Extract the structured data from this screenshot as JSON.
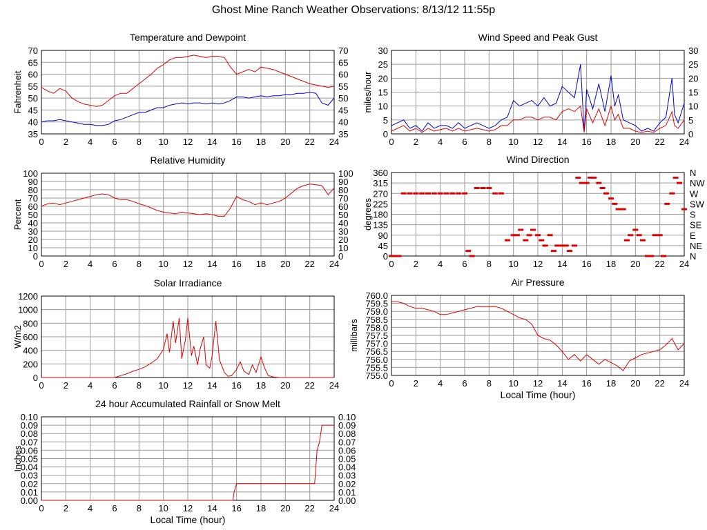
{
  "page": {
    "title": "Ghost Mine Ranch Weather Observations: 8/13/12 11:55p"
  },
  "chart_data": [
    {
      "id": "temp",
      "type": "line",
      "title": "Temperature and Dewpoint",
      "ylabel": "Fahrenheit",
      "xlabel": "",
      "xlim": [
        0,
        24
      ],
      "ylim": [
        35,
        70
      ],
      "xticks": [
        "0",
        "2",
        "4",
        "6",
        "8",
        "10",
        "12",
        "14",
        "16",
        "18",
        "20",
        "22",
        "24"
      ],
      "yticks": [
        "35",
        "40",
        "45",
        "50",
        "55",
        "60",
        "65",
        "70"
      ],
      "right_axis": true,
      "grid": true,
      "series": [
        {
          "color": "#dd0000",
          "x": [
            0,
            0.5,
            1,
            1.5,
            2,
            2.5,
            3,
            3.5,
            4,
            4.5,
            5,
            5.5,
            6,
            6.5,
            7,
            7.5,
            8,
            8.5,
            9,
            9.5,
            10,
            10.5,
            11,
            11.5,
            12,
            12.5,
            13,
            13.5,
            14,
            14.5,
            15,
            15.5,
            16,
            16.5,
            17,
            17.5,
            18,
            18.5,
            19,
            19.5,
            20,
            20.5,
            21,
            21.5,
            22,
            22.5,
            23,
            23.5,
            24
          ],
          "y": [
            54.5,
            53,
            52,
            54,
            53,
            50,
            48.5,
            47.5,
            47,
            46.5,
            47,
            49,
            51,
            52,
            52,
            54,
            56,
            58,
            60,
            62.5,
            64,
            66,
            67,
            67,
            67.5,
            68,
            67.5,
            67,
            67.5,
            67.5,
            67,
            63,
            60,
            61,
            62,
            61,
            63,
            62.5,
            62,
            61,
            60,
            59,
            58,
            57,
            56,
            55.5,
            55,
            54.5,
            55
          ]
        },
        {
          "color": "#0000cc",
          "x": [
            0,
            0.5,
            1,
            1.5,
            2,
            2.5,
            3,
            3.5,
            4,
            4.5,
            5,
            5.5,
            6,
            6.5,
            7,
            7.5,
            8,
            8.5,
            9,
            9.5,
            10,
            10.5,
            11,
            11.5,
            12,
            12.5,
            13,
            13.5,
            14,
            14.5,
            15,
            15.5,
            16,
            16.5,
            17,
            17.5,
            18,
            18.5,
            19,
            19.5,
            20,
            20.5,
            21,
            21.5,
            22,
            22.5,
            23,
            23.5,
            24
          ],
          "y": [
            40,
            40.5,
            40.5,
            41,
            40.5,
            40,
            39.5,
            39,
            39,
            38.5,
            38.5,
            39,
            40.5,
            41,
            42,
            43,
            44,
            44,
            45,
            46,
            46,
            47,
            47.5,
            48,
            47.5,
            48,
            48,
            47.5,
            48,
            47.5,
            48,
            49,
            50.5,
            50.5,
            50,
            50.5,
            51,
            50.5,
            51,
            51,
            51.5,
            51.5,
            52,
            52,
            52.5,
            52,
            48,
            47,
            50
          ]
        }
      ]
    },
    {
      "id": "wind",
      "type": "line",
      "title": "Wind Speed and Peak Gust",
      "ylabel": "miles/hour",
      "xlabel": "",
      "xlim": [
        0,
        24
      ],
      "ylim": [
        0,
        30
      ],
      "xticks": [
        "0",
        "2",
        "4",
        "6",
        "8",
        "10",
        "12",
        "14",
        "16",
        "18",
        "20",
        "22",
        "24"
      ],
      "yticks": [
        "0",
        "5",
        "10",
        "15",
        "20",
        "25",
        "30"
      ],
      "right_axis": true,
      "grid": true,
      "series": [
        {
          "color": "#0000cc",
          "x": [
            0,
            0.5,
            1,
            1.5,
            2,
            2.5,
            3,
            3.5,
            4,
            4.5,
            5,
            5.5,
            6,
            6.5,
            7,
            7.5,
            8,
            8.5,
            9,
            9.5,
            10,
            10.5,
            11,
            11.5,
            12,
            12.5,
            13,
            13.5,
            14,
            14.5,
            15,
            15.5,
            15.8,
            16,
            16.5,
            17,
            17.5,
            18,
            18.3,
            18.6,
            19,
            19.5,
            20,
            20.5,
            21,
            21.5,
            22,
            22.5,
            23,
            23.2,
            23.5,
            24
          ],
          "y": [
            3,
            4,
            5,
            2,
            3,
            1,
            4,
            2,
            3,
            3,
            2,
            4,
            2,
            3,
            4,
            3,
            2,
            3,
            5,
            6,
            12,
            10,
            11,
            12,
            10,
            13,
            10,
            11,
            17,
            15,
            13,
            25,
            1,
            16,
            9,
            18,
            8,
            21,
            10,
            14,
            5,
            4,
            3,
            1,
            2,
            1,
            4,
            6,
            20,
            7,
            4,
            11
          ]
        },
        {
          "color": "#dd0000",
          "x": [
            0,
            0.5,
            1,
            1.5,
            2,
            2.5,
            3,
            3.5,
            4,
            4.5,
            5,
            5.5,
            6,
            6.5,
            7,
            7.5,
            8,
            8.5,
            9,
            9.5,
            10,
            10.5,
            11,
            11.5,
            12,
            12.5,
            13,
            13.5,
            14,
            14.5,
            15,
            15.5,
            15.8,
            16,
            16.5,
            17,
            17.5,
            18,
            18.3,
            18.6,
            19,
            19.5,
            20,
            20.5,
            21,
            21.5,
            22,
            22.5,
            23,
            23.2,
            23.5,
            24
          ],
          "y": [
            1,
            2,
            3,
            1,
            2,
            0.5,
            2,
            1,
            1.5,
            2,
            1,
            2,
            1,
            1.5,
            2,
            1.5,
            1,
            1.5,
            3,
            3,
            5,
            5,
            6,
            6,
            5,
            6,
            6,
            5,
            8,
            9,
            8,
            10,
            0.5,
            9,
            4,
            9,
            3,
            10,
            5,
            7,
            2,
            2,
            1,
            0.5,
            1,
            0.5,
            2,
            3,
            8,
            3,
            2,
            5
          ]
        }
      ]
    },
    {
      "id": "humidity",
      "type": "line",
      "title": "Relative Humidity",
      "ylabel": "Percent",
      "xlabel": "",
      "xlim": [
        0,
        24
      ],
      "ylim": [
        0,
        100
      ],
      "xticks": [
        "0",
        "2",
        "4",
        "6",
        "8",
        "10",
        "12",
        "14",
        "16",
        "18",
        "20",
        "22",
        "24"
      ],
      "yticks": [
        "0",
        "10",
        "20",
        "30",
        "40",
        "50",
        "60",
        "70",
        "80",
        "90",
        "100"
      ],
      "right_axis": true,
      "grid": true,
      "series": [
        {
          "color": "#dd0000",
          "x": [
            0,
            0.5,
            1,
            1.5,
            2,
            2.5,
            3,
            3.5,
            4,
            4.5,
            5,
            5.5,
            6,
            6.5,
            7,
            7.5,
            8,
            8.5,
            9,
            9.5,
            10,
            10.5,
            11,
            11.5,
            12,
            12.5,
            13,
            13.5,
            14,
            14.5,
            15,
            15.5,
            16,
            16.5,
            17,
            17.5,
            18,
            18.5,
            19,
            19.5,
            20,
            20.5,
            21,
            21.5,
            22,
            22.5,
            23,
            23.5,
            24
          ],
          "y": [
            60,
            63,
            64,
            62,
            64,
            66,
            68,
            70,
            72,
            74,
            75,
            74,
            70,
            68,
            68,
            66,
            63,
            61,
            58,
            55,
            53,
            52,
            51,
            53,
            52,
            51,
            50,
            51,
            50,
            48,
            48,
            58,
            72,
            68,
            66,
            62,
            64,
            62,
            64,
            66,
            70,
            76,
            82,
            85,
            87,
            86,
            85,
            74,
            82
          ]
        }
      ]
    },
    {
      "id": "winddir",
      "type": "scatter",
      "title": "Wind Direction",
      "ylabel": "degrees",
      "xlabel": "",
      "xlim": [
        0,
        24
      ],
      "ylim": [
        0,
        360
      ],
      "xticks": [
        "0",
        "2",
        "4",
        "6",
        "8",
        "10",
        "12",
        "14",
        "16",
        "18",
        "20",
        "22",
        "24"
      ],
      "yticks": [
        "0",
        "45",
        "90",
        "135",
        "180",
        "225",
        "270",
        "315",
        "360"
      ],
      "right_labels": [
        "N",
        "NE",
        "E",
        "SE",
        "S",
        "SW",
        "W",
        "NW",
        "N"
      ],
      "grid": true,
      "series": [
        {
          "color": "#dd0000",
          "x": [
            0,
            0.3,
            0.6,
            1,
            1.5,
            2,
            2.5,
            3,
            3.5,
            4,
            4.5,
            5,
            5.5,
            6,
            6.3,
            6.6,
            7,
            7.5,
            8,
            8.5,
            9,
            9.5,
            10,
            10.3,
            10.6,
            11,
            11.3,
            11.6,
            12,
            12.3,
            12.6,
            13,
            13.3,
            13.6,
            14,
            14.3,
            14.6,
            15,
            15.3,
            15.6,
            16,
            16.3,
            16.6,
            17,
            17.3,
            17.6,
            18,
            18.3,
            18.6,
            19,
            19.3,
            19.6,
            20,
            20.3,
            20.6,
            21,
            21.3,
            21.6,
            22,
            22.3,
            22.6,
            23,
            23.3,
            23.6,
            24
          ],
          "y": [
            0,
            0,
            0,
            270,
            270,
            270,
            270,
            270,
            270,
            270,
            270,
            270,
            270,
            270,
            22,
            0,
            293,
            293,
            293,
            270,
            270,
            68,
            90,
            90,
            113,
            68,
            90,
            113,
            90,
            68,
            45,
            90,
            22,
            45,
            45,
            45,
            22,
            45,
            338,
            315,
            315,
            338,
            338,
            315,
            293,
            270,
            248,
            225,
            202,
            202,
            68,
            90,
            113,
            90,
            68,
            0,
            0,
            90,
            90,
            0,
            225,
            270,
            338,
            315,
            202
          ]
        }
      ]
    },
    {
      "id": "solar",
      "type": "line",
      "title": "Solar Irradiance",
      "ylabel": "W/m2",
      "xlabel": "",
      "xlim": [
        0,
        24
      ],
      "ylim": [
        0,
        1300
      ],
      "xticks": [
        "0",
        "2",
        "4",
        "6",
        "8",
        "10",
        "12",
        "14",
        "16",
        "18",
        "20",
        "22",
        "24"
      ],
      "yticks": [
        "0",
        "200",
        "400",
        "600",
        "800",
        "1000",
        "1200"
      ],
      "right_axis": false,
      "grid": true,
      "series": [
        {
          "color": "#dd0000",
          "x": [
            0,
            6,
            6.5,
            7,
            7.5,
            8,
            8.5,
            9,
            9.5,
            10,
            10.3,
            10.5,
            10.8,
            11,
            11.3,
            11.5,
            11.8,
            12,
            12.3,
            12.5,
            12.8,
            13,
            13.3,
            13.5,
            13.8,
            14,
            14.3,
            14.6,
            15,
            15.3,
            15.6,
            16,
            16.3,
            16.6,
            17,
            17.3,
            17.6,
            18,
            18.3,
            18.6,
            19,
            19.5,
            20,
            24
          ],
          "y": [
            0,
            0,
            30,
            60,
            100,
            130,
            170,
            230,
            300,
            450,
            700,
            400,
            900,
            550,
            950,
            300,
            600,
            950,
            350,
            500,
            200,
            450,
            650,
            200,
            150,
            350,
            900,
            280,
            80,
            20,
            30,
            130,
            250,
            100,
            50,
            200,
            80,
            330,
            150,
            30,
            10,
            0,
            0,
            0
          ]
        }
      ]
    },
    {
      "id": "pressure",
      "type": "line",
      "title": "Air Pressure",
      "ylabel": "millibars",
      "xlabel": "Local Time (hour)",
      "xlim": [
        0,
        24
      ],
      "ylim": [
        755.0,
        760.0
      ],
      "xticks": [
        "0",
        "2",
        "4",
        "6",
        "8",
        "10",
        "12",
        "14",
        "16",
        "18",
        "20",
        "22",
        "24"
      ],
      "yticks": [
        "755.0",
        "755.5",
        "756.0",
        "756.5",
        "757.0",
        "757.5",
        "758.0",
        "758.5",
        "759.0",
        "759.5",
        "760.0"
      ],
      "right_axis": false,
      "grid": true,
      "series": [
        {
          "color": "#dd0000",
          "x": [
            0,
            0.5,
            1,
            1.5,
            2,
            2.5,
            3,
            3.5,
            4,
            4.5,
            5,
            5.5,
            6,
            6.5,
            7,
            7.5,
            8,
            8.5,
            9,
            9.5,
            10,
            10.5,
            11,
            11.5,
            12,
            12.5,
            13,
            13.5,
            14,
            14.5,
            15,
            15.5,
            16,
            16.5,
            17,
            17.5,
            18,
            18.5,
            19,
            19.5,
            20,
            20.5,
            21,
            21.5,
            22,
            22.5,
            23,
            23.5,
            24
          ],
          "y": [
            759.6,
            759.6,
            759.5,
            759.3,
            759.2,
            759.2,
            759.1,
            759.0,
            758.8,
            758.8,
            758.9,
            759.0,
            759.1,
            759.2,
            759.3,
            759.3,
            759.3,
            759.3,
            759.2,
            759.0,
            758.8,
            758.6,
            758.5,
            758.2,
            757.5,
            757.3,
            757.2,
            756.9,
            756.5,
            756.0,
            756.3,
            755.9,
            756.3,
            756.0,
            755.7,
            756.0,
            755.8,
            755.6,
            755.3,
            755.9,
            756.1,
            756.3,
            756.4,
            756.5,
            756.6,
            756.9,
            757.3,
            756.6,
            757.0
          ]
        }
      ]
    },
    {
      "id": "rain",
      "type": "line",
      "title": "24 hour Accumulated Rainfall or Snow Melt",
      "ylabel": "Inches",
      "xlabel": "Local Time (hour)",
      "xlim": [
        0,
        24
      ],
      "ylim": [
        0,
        0.1
      ],
      "xticks": [
        "0",
        "2",
        "4",
        "6",
        "8",
        "10",
        "12",
        "14",
        "16",
        "18",
        "20",
        "22",
        "24"
      ],
      "yticks": [
        "0.00",
        "0.01",
        "0.02",
        "0.03",
        "0.04",
        "0.05",
        "0.06",
        "0.07",
        "0.08",
        "0.09",
        "0.10"
      ],
      "right_axis": true,
      "grid": true,
      "series": [
        {
          "color": "#dd0000",
          "x": [
            0,
            15.7,
            15.8,
            16,
            22.4,
            22.5,
            22.6,
            22.8,
            23,
            23.3,
            24
          ],
          "y": [
            0,
            0,
            0.01,
            0.02,
            0.02,
            0.04,
            0.06,
            0.07,
            0.09,
            0.09,
            0.09
          ]
        }
      ]
    }
  ]
}
